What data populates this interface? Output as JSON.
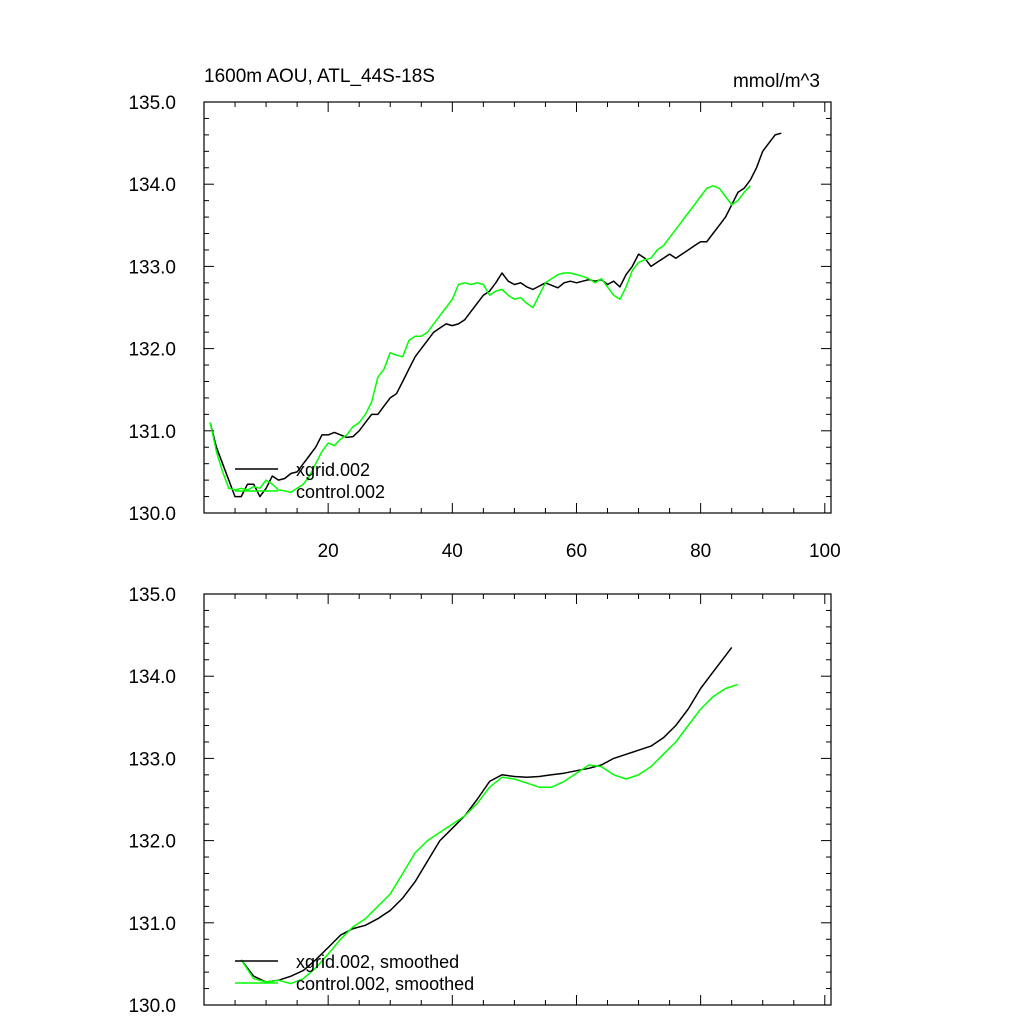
{
  "chart_data": [
    {
      "type": "line",
      "title": "1600m AOU, ATL_44S-18S",
      "units_label": "mmol/m^3",
      "xlabel": "",
      "ylabel": "",
      "xlim": [
        0,
        101
      ],
      "ylim": [
        130.0,
        135.0
      ],
      "x_ticks": [
        20,
        40,
        60,
        80,
        100
      ],
      "x_tick_labels": [
        "20",
        "40",
        "60",
        "80",
        "100"
      ],
      "y_ticks": [
        130.0,
        131.0,
        132.0,
        133.0,
        134.0,
        135.0
      ],
      "y_tick_labels": [
        "130.0",
        "131.0",
        "132.0",
        "133.0",
        "134.0",
        "135.0"
      ],
      "legend_position": "bottom-left",
      "series": [
        {
          "name": "xgrid.002",
          "color": "#000000",
          "points": [
            [
              1,
              131.1
            ],
            [
              2,
              130.8
            ],
            [
              3,
              130.6
            ],
            [
              4,
              130.4
            ],
            [
              5,
              130.2
            ],
            [
              6,
              130.2
            ],
            [
              7,
              130.35
            ],
            [
              8,
              130.35
            ],
            [
              9,
              130.2
            ],
            [
              10,
              130.3
            ],
            [
              11,
              130.45
            ],
            [
              12,
              130.4
            ],
            [
              13,
              130.42
            ],
            [
              14,
              130.48
            ],
            [
              15,
              130.5
            ],
            [
              16,
              130.6
            ],
            [
              17,
              130.7
            ],
            [
              18,
              130.8
            ],
            [
              19,
              130.95
            ],
            [
              20,
              130.95
            ],
            [
              21,
              130.98
            ],
            [
              22,
              130.95
            ],
            [
              23,
              130.92
            ],
            [
              24,
              130.93
            ],
            [
              25,
              131.0
            ],
            [
              26,
              131.1
            ],
            [
              27,
              131.2
            ],
            [
              28,
              131.2
            ],
            [
              29,
              131.3
            ],
            [
              30,
              131.4
            ],
            [
              31,
              131.45
            ],
            [
              32,
              131.6
            ],
            [
              33,
              131.75
            ],
            [
              34,
              131.9
            ],
            [
              35,
              132.0
            ],
            [
              36,
              132.1
            ],
            [
              37,
              132.2
            ],
            [
              38,
              132.25
            ],
            [
              39,
              132.3
            ],
            [
              40,
              132.28
            ],
            [
              41,
              132.3
            ],
            [
              42,
              132.35
            ],
            [
              43,
              132.45
            ],
            [
              44,
              132.55
            ],
            [
              45,
              132.65
            ],
            [
              46,
              132.7
            ],
            [
              47,
              132.8
            ],
            [
              48,
              132.92
            ],
            [
              49,
              132.82
            ],
            [
              50,
              132.78
            ],
            [
              51,
              132.8
            ],
            [
              52,
              132.75
            ],
            [
              53,
              132.72
            ],
            [
              54,
              132.76
            ],
            [
              55,
              132.8
            ],
            [
              56,
              132.77
            ],
            [
              57,
              132.74
            ],
            [
              58,
              132.8
            ],
            [
              59,
              132.82
            ],
            [
              60,
              132.8
            ],
            [
              61,
              132.82
            ],
            [
              62,
              132.84
            ],
            [
              63,
              132.82
            ],
            [
              64,
              132.84
            ],
            [
              65,
              132.78
            ],
            [
              66,
              132.82
            ],
            [
              67,
              132.75
            ],
            [
              68,
              132.9
            ],
            [
              69,
              133.0
            ],
            [
              70,
              133.15
            ],
            [
              71,
              133.1
            ],
            [
              72,
              133.0
            ],
            [
              73,
              133.05
            ],
            [
              74,
              133.1
            ],
            [
              75,
              133.15
            ],
            [
              76,
              133.1
            ],
            [
              77,
              133.15
            ],
            [
              78,
              133.2
            ],
            [
              79,
              133.25
            ],
            [
              80,
              133.3
            ],
            [
              81,
              133.3
            ],
            [
              82,
              133.4
            ],
            [
              83,
              133.5
            ],
            [
              84,
              133.6
            ],
            [
              85,
              133.75
            ],
            [
              86,
              133.9
            ],
            [
              87,
              133.95
            ],
            [
              88,
              134.05
            ],
            [
              89,
              134.2
            ],
            [
              90,
              134.4
            ],
            [
              91,
              134.5
            ],
            [
              92,
              134.6
            ],
            [
              93,
              134.62
            ]
          ]
        },
        {
          "name": "control.002",
          "color": "#00ff00",
          "points": [
            [
              1,
              131.1
            ],
            [
              2,
              130.75
            ],
            [
              3,
              130.5
            ],
            [
              4,
              130.3
            ],
            [
              5,
              130.28
            ],
            [
              6,
              130.3
            ],
            [
              7,
              130.28
            ],
            [
              8,
              130.32
            ],
            [
              9,
              130.3
            ],
            [
              10,
              130.4
            ],
            [
              11,
              130.35
            ],
            [
              12,
              130.28
            ],
            [
              13,
              130.27
            ],
            [
              14,
              130.25
            ],
            [
              15,
              130.3
            ],
            [
              16,
              130.35
            ],
            [
              17,
              130.45
            ],
            [
              18,
              130.6
            ],
            [
              19,
              130.75
            ],
            [
              20,
              130.85
            ],
            [
              21,
              130.82
            ],
            [
              22,
              130.9
            ],
            [
              23,
              130.95
            ],
            [
              24,
              131.05
            ],
            [
              25,
              131.1
            ],
            [
              26,
              131.2
            ],
            [
              27,
              131.35
            ],
            [
              28,
              131.65
            ],
            [
              29,
              131.75
            ],
            [
              30,
              131.95
            ],
            [
              31,
              131.92
            ],
            [
              32,
              131.9
            ],
            [
              33,
              132.1
            ],
            [
              34,
              132.15
            ],
            [
              35,
              132.15
            ],
            [
              36,
              132.2
            ],
            [
              37,
              132.3
            ],
            [
              38,
              132.4
            ],
            [
              39,
              132.5
            ],
            [
              40,
              132.6
            ],
            [
              41,
              132.78
            ],
            [
              42,
              132.8
            ],
            [
              43,
              132.78
            ],
            [
              44,
              132.8
            ],
            [
              45,
              132.78
            ],
            [
              46,
              132.65
            ],
            [
              47,
              132.7
            ],
            [
              48,
              132.72
            ],
            [
              49,
              132.65
            ],
            [
              50,
              132.6
            ],
            [
              51,
              132.62
            ],
            [
              52,
              132.55
            ],
            [
              53,
              132.5
            ],
            [
              54,
              132.65
            ],
            [
              55,
              132.8
            ],
            [
              56,
              132.85
            ],
            [
              57,
              132.9
            ],
            [
              58,
              132.92
            ],
            [
              59,
              132.92
            ],
            [
              60,
              132.9
            ],
            [
              61,
              132.88
            ],
            [
              62,
              132.85
            ],
            [
              63,
              132.8
            ],
            [
              64,
              132.85
            ],
            [
              65,
              132.75
            ],
            [
              66,
              132.65
            ],
            [
              67,
              132.6
            ],
            [
              68,
              132.75
            ],
            [
              69,
              132.95
            ],
            [
              70,
              133.05
            ],
            [
              71,
              133.08
            ],
            [
              72,
              133.1
            ],
            [
              73,
              133.2
            ],
            [
              74,
              133.25
            ],
            [
              75,
              133.35
            ],
            [
              76,
              133.45
            ],
            [
              77,
              133.55
            ],
            [
              78,
              133.65
            ],
            [
              79,
              133.75
            ],
            [
              80,
              133.85
            ],
            [
              81,
              133.95
            ],
            [
              82,
              133.98
            ],
            [
              83,
              133.95
            ],
            [
              84,
              133.85
            ],
            [
              85,
              133.75
            ],
            [
              86,
              133.8
            ],
            [
              87,
              133.9
            ],
            [
              88,
              133.98
            ]
          ]
        }
      ]
    },
    {
      "type": "line",
      "title": "",
      "xlabel": "",
      "ylabel": "",
      "xlim": [
        0,
        101
      ],
      "ylim": [
        130.0,
        135.0
      ],
      "x_ticks": [
        20,
        40,
        60,
        80,
        100
      ],
      "y_ticks": [
        130.0,
        131.0,
        132.0,
        133.0,
        134.0,
        135.0
      ],
      "y_tick_labels": [
        "130.0",
        "131.0",
        "132.0",
        "133.0",
        "134.0",
        "135.0"
      ],
      "legend_position": "bottom-left",
      "series": [
        {
          "name": "xgrid.002, smoothed",
          "color": "#000000",
          "points": [
            [
              6,
              130.55
            ],
            [
              8,
              130.35
            ],
            [
              10,
              130.28
            ],
            [
              12,
              130.3
            ],
            [
              14,
              130.35
            ],
            [
              16,
              130.42
            ],
            [
              18,
              130.55
            ],
            [
              20,
              130.7
            ],
            [
              22,
              130.85
            ],
            [
              24,
              130.93
            ],
            [
              26,
              130.97
            ],
            [
              28,
              131.05
            ],
            [
              30,
              131.15
            ],
            [
              32,
              131.3
            ],
            [
              34,
              131.5
            ],
            [
              36,
              131.75
            ],
            [
              38,
              132.0
            ],
            [
              40,
              132.15
            ],
            [
              42,
              132.3
            ],
            [
              44,
              132.5
            ],
            [
              46,
              132.72
            ],
            [
              48,
              132.8
            ],
            [
              50,
              132.78
            ],
            [
              52,
              132.77
            ],
            [
              54,
              132.78
            ],
            [
              56,
              132.8
            ],
            [
              58,
              132.82
            ],
            [
              60,
              132.85
            ],
            [
              62,
              132.88
            ],
            [
              64,
              132.92
            ],
            [
              66,
              133.0
            ],
            [
              68,
              133.05
            ],
            [
              70,
              133.1
            ],
            [
              72,
              133.15
            ],
            [
              74,
              133.25
            ],
            [
              76,
              133.4
            ],
            [
              78,
              133.6
            ],
            [
              80,
              133.85
            ],
            [
              82,
              134.05
            ],
            [
              84,
              134.25
            ],
            [
              85,
              134.35
            ]
          ]
        },
        {
          "name": "control.002, smoothed",
          "color": "#00ff00",
          "points": [
            [
              6,
              130.55
            ],
            [
              8,
              130.32
            ],
            [
              10,
              130.28
            ],
            [
              12,
              130.3
            ],
            [
              14,
              130.26
            ],
            [
              16,
              130.32
            ],
            [
              18,
              130.45
            ],
            [
              20,
              130.62
            ],
            [
              22,
              130.8
            ],
            [
              24,
              130.95
            ],
            [
              26,
              131.05
            ],
            [
              28,
              131.2
            ],
            [
              30,
              131.35
            ],
            [
              32,
              131.6
            ],
            [
              34,
              131.85
            ],
            [
              36,
              132.0
            ],
            [
              38,
              132.1
            ],
            [
              40,
              132.2
            ],
            [
              42,
              132.3
            ],
            [
              44,
              132.45
            ],
            [
              46,
              132.65
            ],
            [
              48,
              132.77
            ],
            [
              50,
              132.75
            ],
            [
              52,
              132.7
            ],
            [
              54,
              132.65
            ],
            [
              56,
              132.65
            ],
            [
              58,
              132.72
            ],
            [
              60,
              132.82
            ],
            [
              62,
              132.92
            ],
            [
              64,
              132.9
            ],
            [
              66,
              132.8
            ],
            [
              68,
              132.75
            ],
            [
              70,
              132.8
            ],
            [
              72,
              132.9
            ],
            [
              74,
              133.05
            ],
            [
              76,
              133.2
            ],
            [
              78,
              133.4
            ],
            [
              80,
              133.6
            ],
            [
              82,
              133.75
            ],
            [
              84,
              133.85
            ],
            [
              86,
              133.9
            ]
          ]
        }
      ]
    }
  ]
}
